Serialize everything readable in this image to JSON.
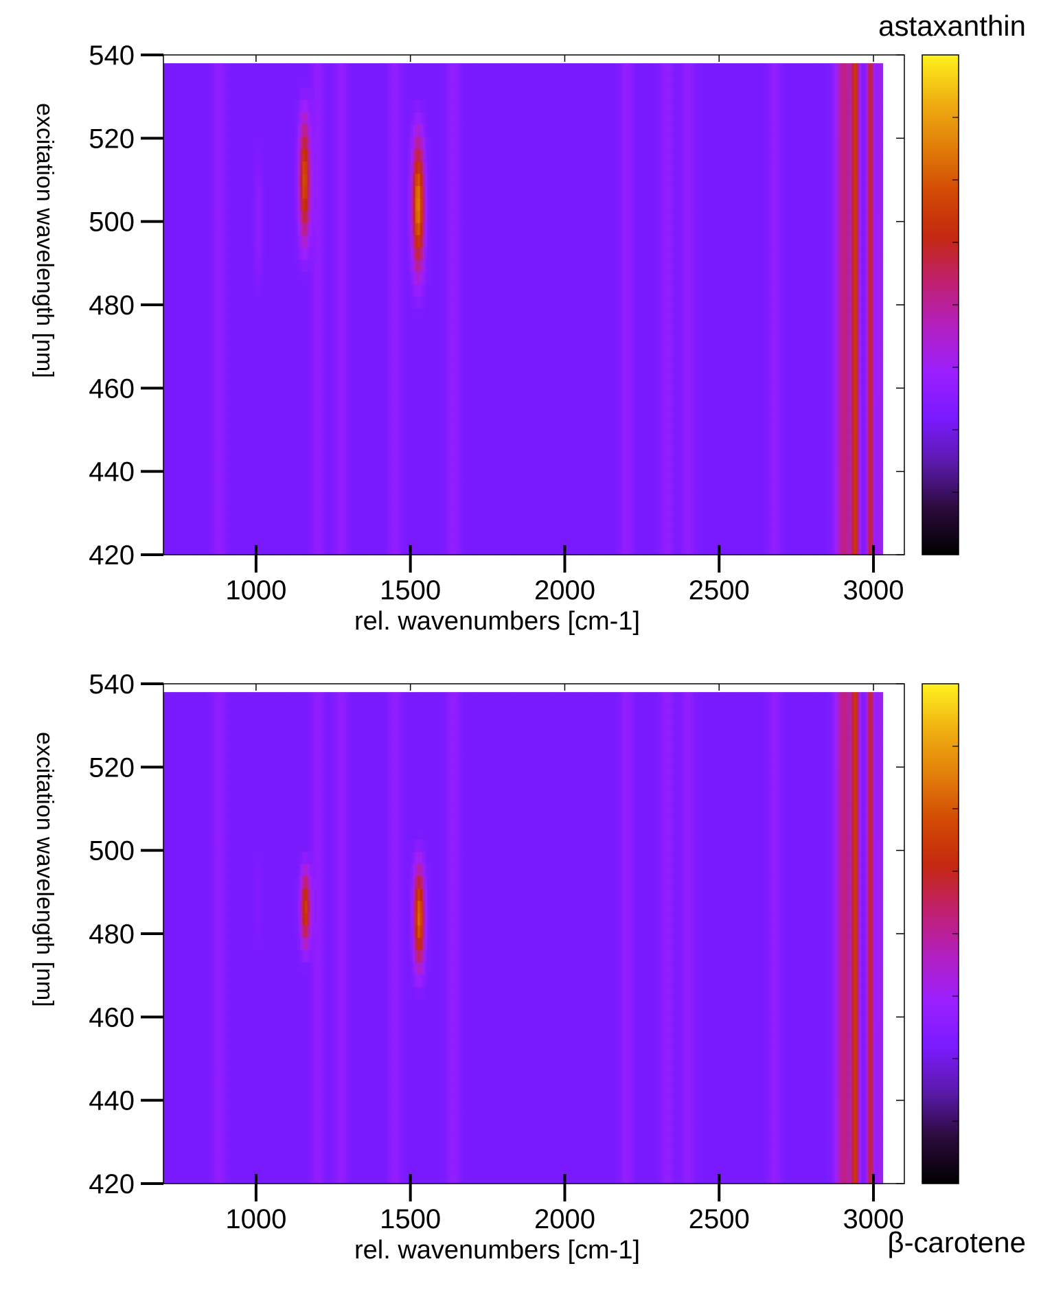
{
  "chart_data": [
    {
      "type": "heatmap",
      "title": "astaxanthin",
      "xlabel": "rel. wavenumbers [cm-1]",
      "ylabel": "excitation wavelength [nm]",
      "xlim": [
        700,
        3100
      ],
      "ylim": [
        420,
        540
      ],
      "x_data_range": [
        700,
        3030
      ],
      "y_data_range": [
        420,
        538
      ],
      "xticks": [
        1000,
        1500,
        2000,
        2500,
        3000
      ],
      "yticks": [
        420,
        440,
        460,
        480,
        500,
        520,
        540
      ],
      "colorbar_range": [
        0,
        1
      ],
      "colormap": [
        "#000000",
        "#2a0a3a",
        "#5a1aa8",
        "#7a1aff",
        "#9b1fff",
        "#b21fc0",
        "#c02070",
        "#c42810",
        "#d24a05",
        "#e27f0a",
        "#f0b012",
        "#fff21e"
      ],
      "peaks": [
        {
          "x": 1157,
          "width": 18,
          "peak_intensity": 0.74,
          "y_center": 510,
          "y_sigma": 16,
          "baseline": 0.4
        },
        {
          "x": 1525,
          "width": 20,
          "peak_intensity": 0.82,
          "y_center": 504,
          "y_sigma": 17,
          "baseline": 0.4
        },
        {
          "x": 1008,
          "width": 14,
          "peak_intensity": 0.33,
          "y_center": 500,
          "y_sigma": 30,
          "baseline": 0.3
        },
        {
          "x": 2940,
          "width": 14,
          "peak_intensity": 0.68,
          "y_center": 480,
          "y_sigma": 500,
          "baseline": 0.68
        },
        {
          "x": 2990,
          "width": 12,
          "peak_intensity": 0.62,
          "y_center": 480,
          "y_sigma": 500,
          "baseline": 0.62
        },
        {
          "x": 2905,
          "width": 28,
          "peak_intensity": 0.53,
          "y_center": 480,
          "y_sigma": 500,
          "baseline": 0.53
        },
        {
          "x": 3020,
          "width": 12,
          "peak_intensity": 0.4,
          "y_center": 480,
          "y_sigma": 500,
          "baseline": 0.4
        }
      ],
      "minor_bands": [
        880,
        1200,
        1275,
        1450,
        1640,
        2200,
        2330,
        2400,
        2680
      ]
    },
    {
      "type": "heatmap",
      "title": "β-carotene",
      "xlabel": "rel. wavenumbers [cm-1]",
      "ylabel": "excitation wavelength [nm]",
      "xlim": [
        700,
        3100
      ],
      "ylim": [
        420,
        540
      ],
      "x_data_range": [
        700,
        3030
      ],
      "y_data_range": [
        420,
        538
      ],
      "xticks": [
        1000,
        1500,
        2000,
        2500,
        3000
      ],
      "yticks": [
        420,
        440,
        460,
        480,
        500,
        520,
        540
      ],
      "colorbar_range": [
        0,
        1
      ],
      "colormap": [
        "#000000",
        "#2a0a3a",
        "#5a1aa8",
        "#7a1aff",
        "#9b1fff",
        "#b21fc0",
        "#c02070",
        "#c42810",
        "#d24a05",
        "#e27f0a",
        "#f0b012",
        "#fff21e"
      ],
      "peaks": [
        {
          "x": 1160,
          "width": 16,
          "peak_intensity": 0.7,
          "y_center": 486,
          "y_sigma": 10,
          "baseline": 0.4
        },
        {
          "x": 1528,
          "width": 18,
          "peak_intensity": 0.78,
          "y_center": 484,
          "y_sigma": 13,
          "baseline": 0.4
        },
        {
          "x": 1008,
          "width": 14,
          "peak_intensity": 0.3,
          "y_center": 488,
          "y_sigma": 25,
          "baseline": 0.3
        },
        {
          "x": 2940,
          "width": 14,
          "peak_intensity": 0.68,
          "y_center": 480,
          "y_sigma": 500,
          "baseline": 0.68
        },
        {
          "x": 2990,
          "width": 12,
          "peak_intensity": 0.62,
          "y_center": 480,
          "y_sigma": 500,
          "baseline": 0.62
        },
        {
          "x": 2905,
          "width": 28,
          "peak_intensity": 0.53,
          "y_center": 480,
          "y_sigma": 500,
          "baseline": 0.53
        },
        {
          "x": 3020,
          "width": 12,
          "peak_intensity": 0.4,
          "y_center": 480,
          "y_sigma": 500,
          "baseline": 0.4
        }
      ],
      "minor_bands": [
        880,
        1200,
        1275,
        1450,
        1640,
        2200,
        2330,
        2400,
        2680
      ]
    }
  ]
}
